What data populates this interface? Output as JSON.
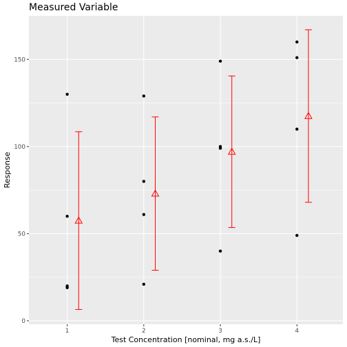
{
  "chart_data": {
    "type": "scatter",
    "title": "Measured Variable",
    "xlabel": "Test Concentration [nominal, mg a.s./L]",
    "ylabel": "Response",
    "x_ticks": [
      "1",
      "2",
      "3",
      "4"
    ],
    "y_ticks": [
      0,
      50,
      100,
      150
    ],
    "xlim": [
      0.5,
      4.6
    ],
    "ylim": [
      -2,
      175
    ],
    "grid": true,
    "legend": "none",
    "colors": {
      "panel": "#ebebeb",
      "grid": "#ffffff",
      "points": "#000000",
      "summary": "#ff0000"
    },
    "series": [
      {
        "marker": "point",
        "points": [
          {
            "x": 1,
            "y": 130
          },
          {
            "x": 1,
            "y": 60
          },
          {
            "x": 1,
            "y": 20
          },
          {
            "x": 1,
            "y": 19
          },
          {
            "x": 2,
            "y": 129
          },
          {
            "x": 2,
            "y": 80
          },
          {
            "x": 2,
            "y": 61
          },
          {
            "x": 2,
            "y": 21
          },
          {
            "x": 3,
            "y": 149
          },
          {
            "x": 3,
            "y": 100
          },
          {
            "x": 3,
            "y": 99
          },
          {
            "x": 3,
            "y": 40
          },
          {
            "x": 4,
            "y": 160
          },
          {
            "x": 4,
            "y": 151
          },
          {
            "x": 4,
            "y": 110
          },
          {
            "x": 4,
            "y": 49
          }
        ]
      },
      {
        "marker": "triangle-open",
        "offset": 0.15,
        "summary": [
          {
            "x": 1,
            "mean": 57.5,
            "lower": 6.5,
            "upper": 108.5
          },
          {
            "x": 2,
            "mean": 73.0,
            "lower": 29.0,
            "upper": 117.0
          },
          {
            "x": 3,
            "mean": 97.0,
            "lower": 53.5,
            "upper": 140.5
          },
          {
            "x": 4,
            "mean": 117.5,
            "lower": 68.0,
            "upper": 167.0
          }
        ]
      }
    ]
  }
}
